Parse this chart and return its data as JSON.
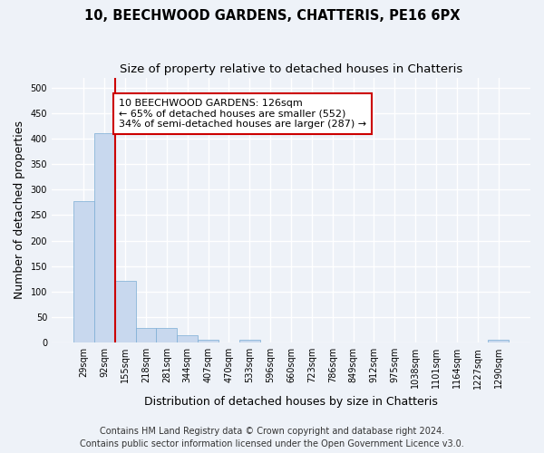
{
  "title_line1": "10, BEECHWOOD GARDENS, CHATTERIS, PE16 6PX",
  "title_line2": "Size of property relative to detached houses in Chatteris",
  "xlabel": "Distribution of detached houses by size in Chatteris",
  "ylabel": "Number of detached properties",
  "footer_line1": "Contains HM Land Registry data © Crown copyright and database right 2024.",
  "footer_line2": "Contains public sector information licensed under the Open Government Licence v3.0.",
  "categories": [
    "29sqm",
    "92sqm",
    "155sqm",
    "218sqm",
    "281sqm",
    "344sqm",
    "407sqm",
    "470sqm",
    "533sqm",
    "596sqm",
    "660sqm",
    "723sqm",
    "786sqm",
    "849sqm",
    "912sqm",
    "975sqm",
    "1038sqm",
    "1101sqm",
    "1164sqm",
    "1227sqm",
    "1290sqm"
  ],
  "values": [
    277,
    410,
    122,
    29,
    29,
    15,
    5,
    0,
    6,
    0,
    0,
    0,
    0,
    0,
    0,
    0,
    0,
    0,
    0,
    0,
    5
  ],
  "bar_color": "#c8d8ee",
  "bar_edge_color": "#7aadd4",
  "vline_x": 2,
  "vline_color": "#cc0000",
  "annotation_text": "10 BEECHWOOD GARDENS: 126sqm\n← 65% of detached houses are smaller (552)\n34% of semi-detached houses are larger (287) →",
  "annotation_box_facecolor": "white",
  "annotation_box_edgecolor": "#cc0000",
  "ylim": [
    0,
    520
  ],
  "yticks": [
    0,
    50,
    100,
    150,
    200,
    250,
    300,
    350,
    400,
    450,
    500
  ],
  "background_color": "#eef2f8",
  "grid_color": "white",
  "title_fontsize": 10.5,
  "subtitle_fontsize": 9.5,
  "axis_label_fontsize": 9,
  "tick_fontsize": 7,
  "annotation_fontsize": 8,
  "footer_fontsize": 7
}
